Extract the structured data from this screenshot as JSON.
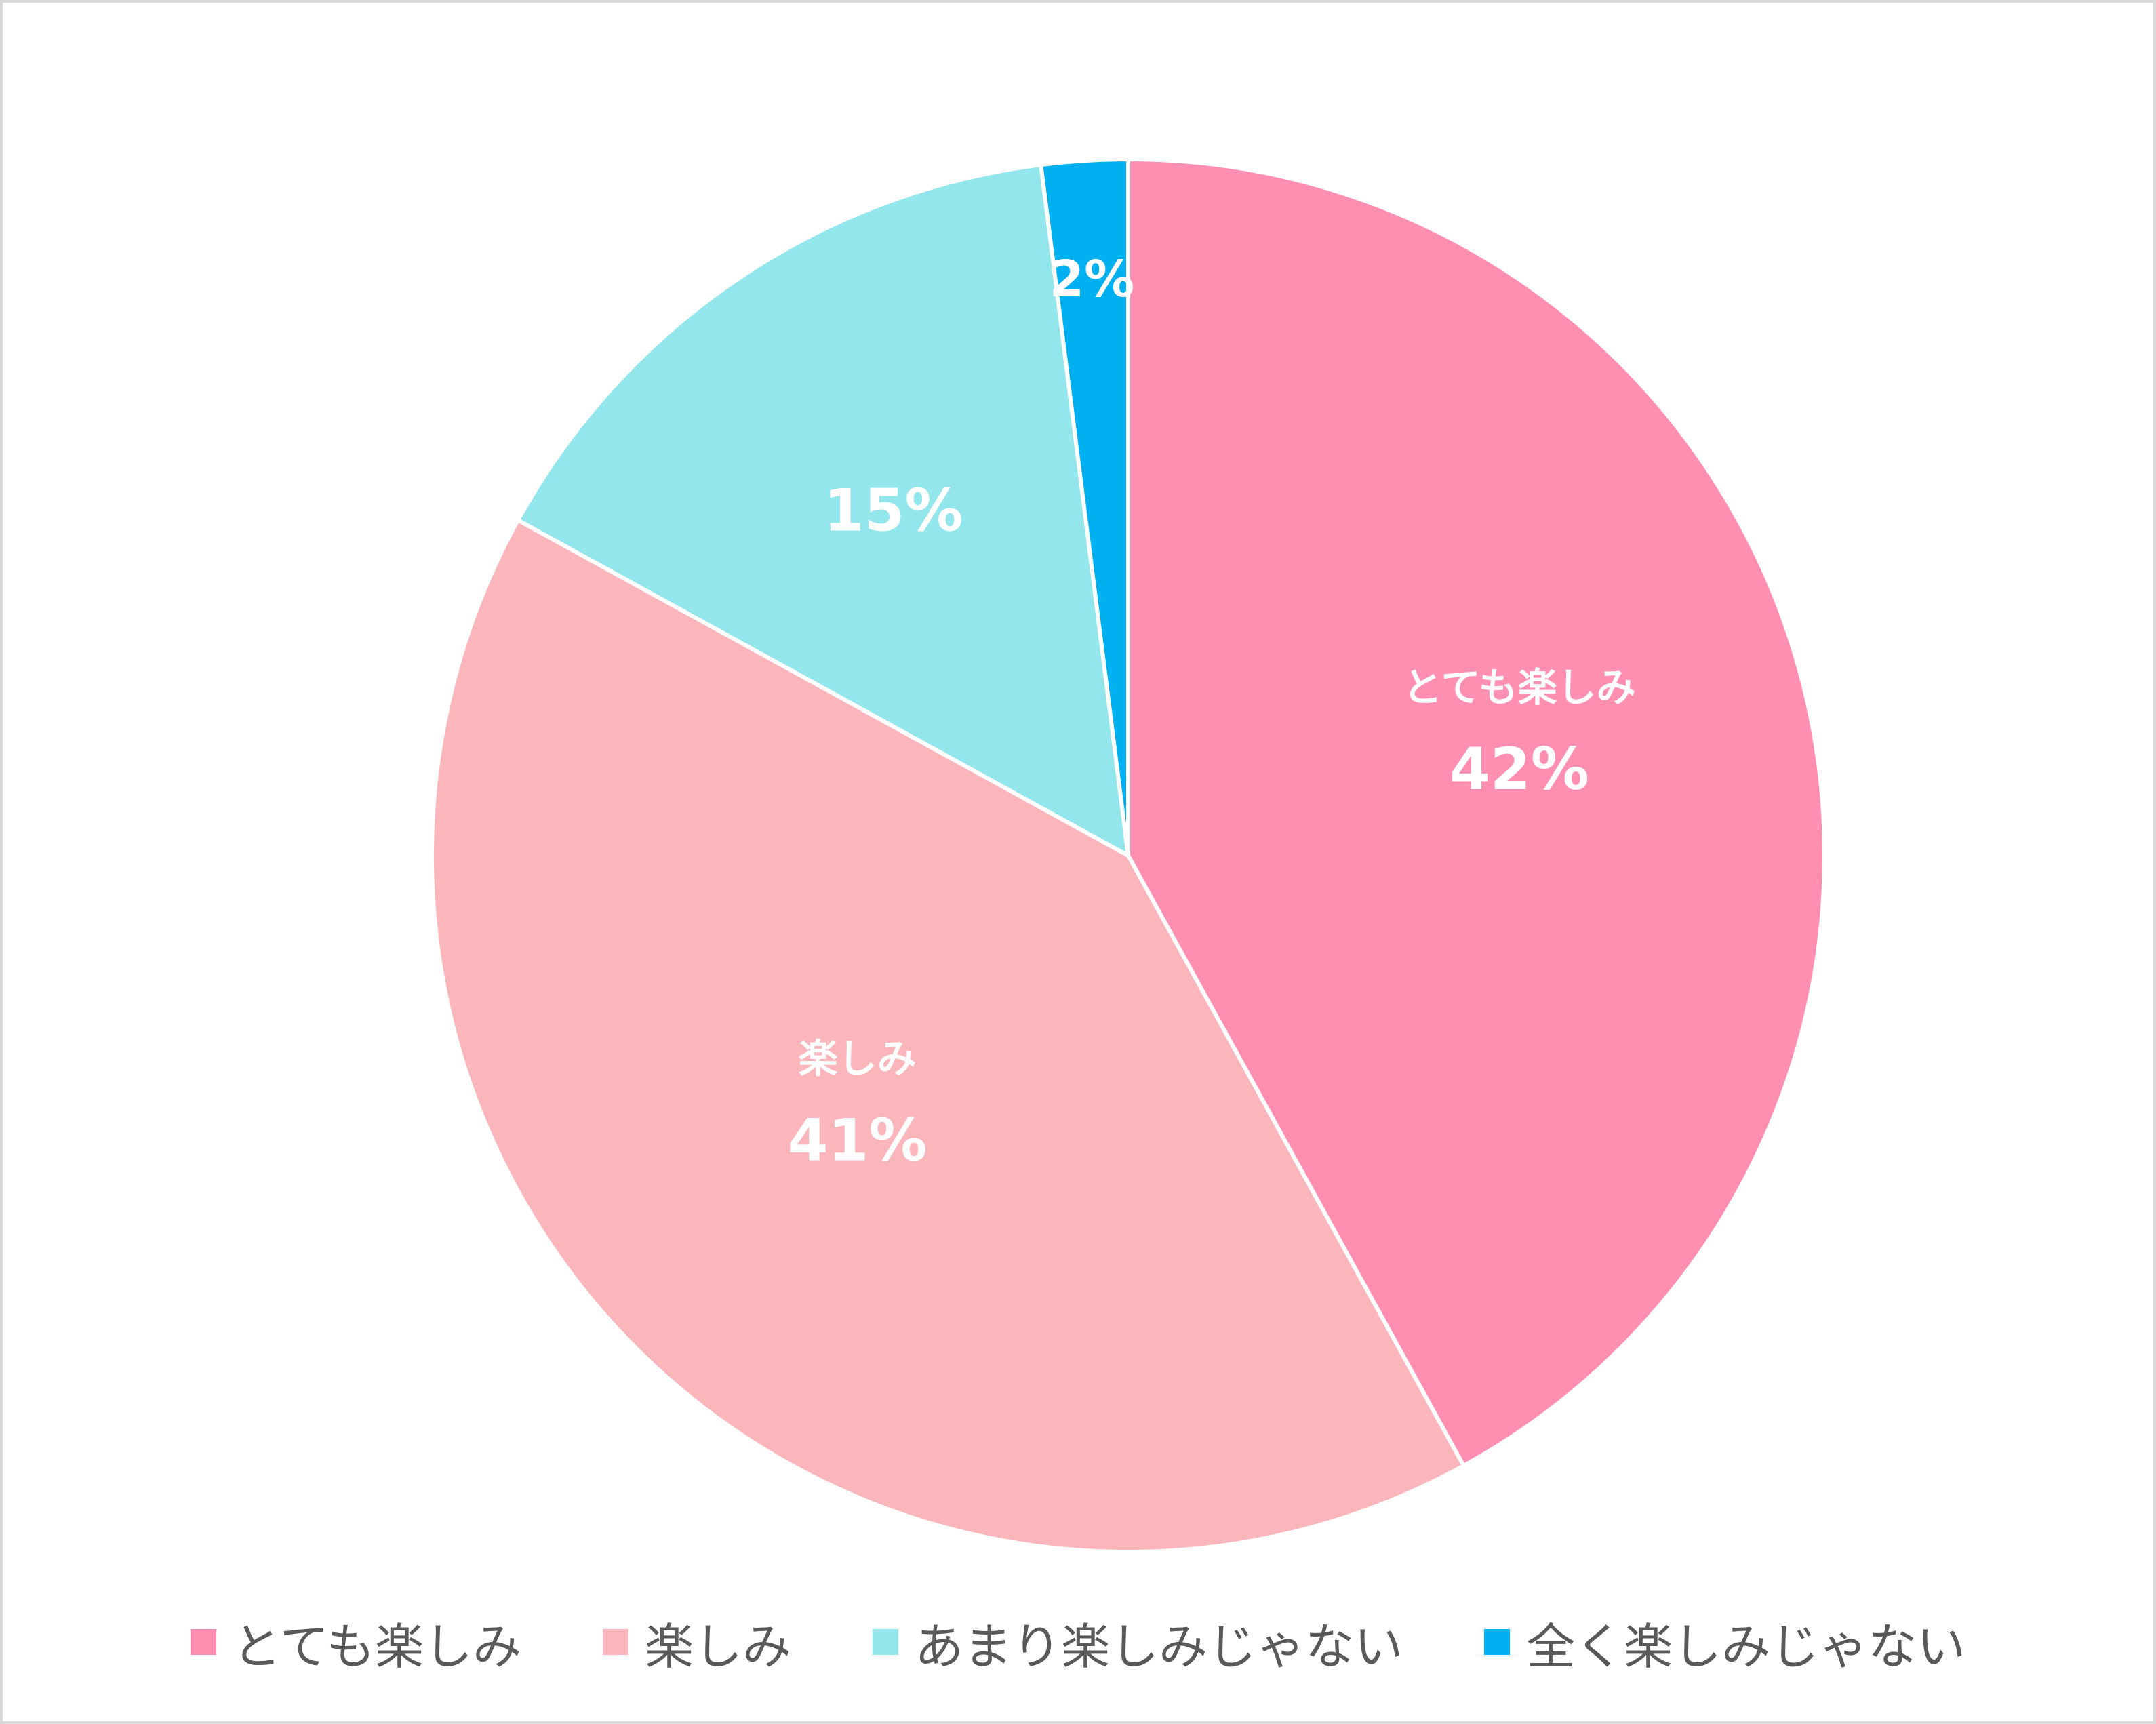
{
  "chart_data": {
    "type": "pie",
    "categories": [
      "とても楽しみ",
      "楽しみ",
      "あまり楽しみじゃない",
      "全く楽しみじゃない"
    ],
    "values": [
      42,
      41,
      15,
      2
    ],
    "data_labels": [
      "42%",
      "41%",
      "15%",
      "2%"
    ],
    "colors": [
      "#ff8fb1",
      "#fbb6bc",
      "#93e6eb",
      "#00b0f0"
    ],
    "title": "",
    "legend_position": "bottom"
  }
}
